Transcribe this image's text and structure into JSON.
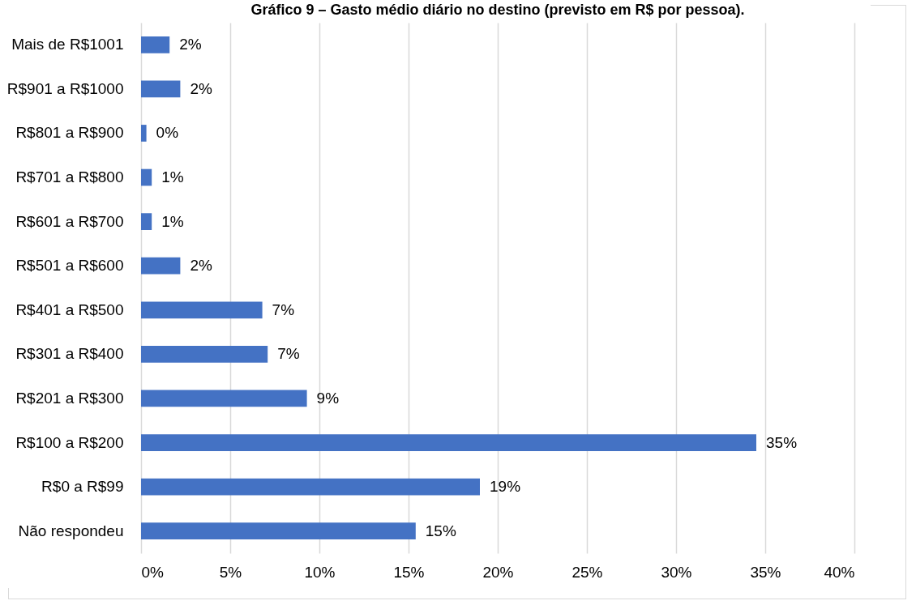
{
  "chart_data": {
    "type": "bar",
    "orientation": "horizontal",
    "title": "Gráfico 9 – Gasto médio diário no destino (previsto em R$ por pessoa).",
    "categories": [
      "Mais de R$1001",
      "R$901 a R$1000",
      "R$801 a R$900",
      "R$701 a R$800",
      "R$601 a R$700",
      "R$501 a R$600",
      "R$401 a R$500",
      "R$301 a R$400",
      "R$201 a R$300",
      "R$100 a R$200",
      "R$0 a R$99",
      "Não respondeu"
    ],
    "values": [
      1.6,
      2.2,
      0.3,
      0.6,
      0.6,
      2.2,
      6.8,
      7.1,
      9.3,
      34.5,
      19.0,
      15.4
    ],
    "value_labels": [
      "2%",
      "2%",
      "0%",
      "1%",
      "1%",
      "2%",
      "7%",
      "7%",
      "9%",
      "35%",
      "19%",
      "15%"
    ],
    "color": "#4472c4",
    "xlim": [
      0,
      40
    ],
    "xticks": [
      {
        "value": 0,
        "label": "0%"
      },
      {
        "value": 5,
        "label": "5%"
      },
      {
        "value": 10,
        "label": "10%"
      },
      {
        "value": 15,
        "label": "15%"
      },
      {
        "value": 20,
        "label": "20%"
      },
      {
        "value": 25,
        "label": "25%"
      },
      {
        "value": 30,
        "label": "30%"
      },
      {
        "value": 35,
        "label": "35%"
      },
      {
        "value": 40,
        "label": "40%"
      }
    ],
    "grid": "x"
  }
}
